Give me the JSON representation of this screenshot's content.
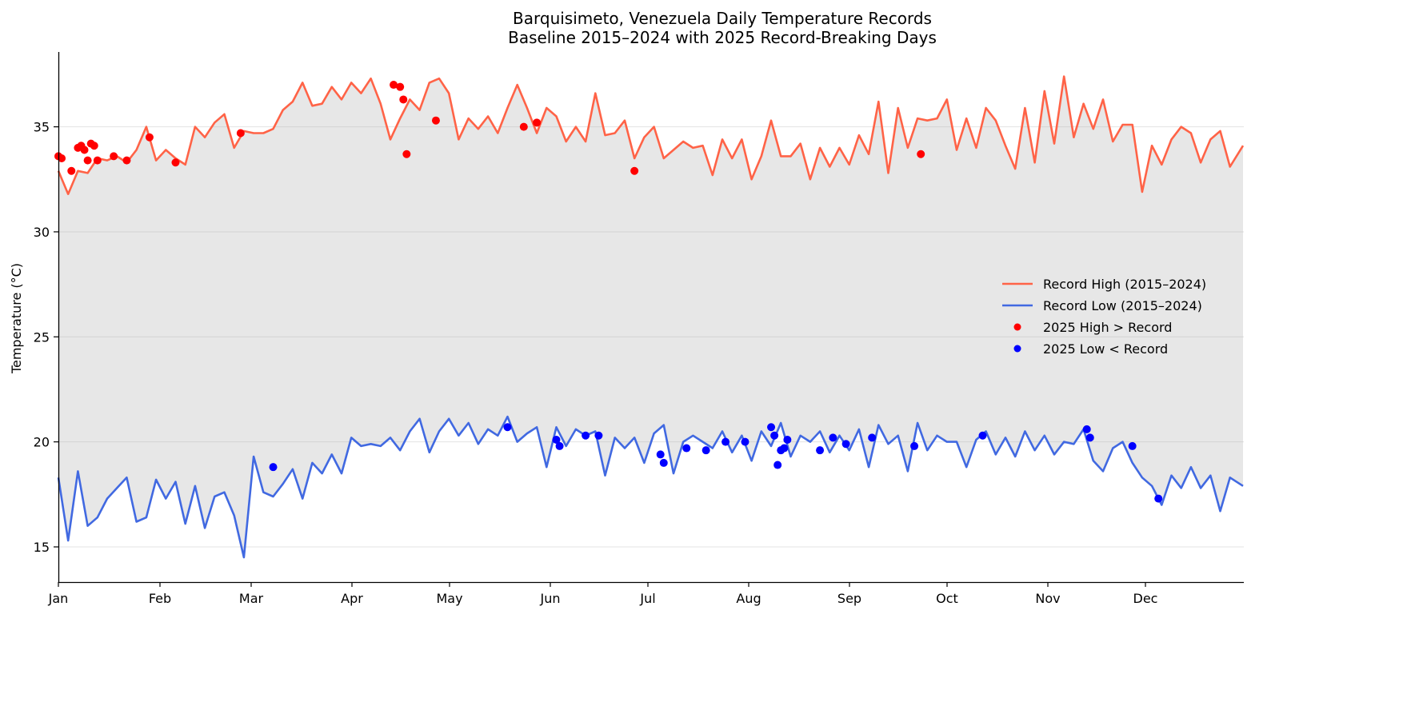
{
  "chart_data": {
    "type": "line",
    "title": "Barquisimeto, Venezuela Daily Temperature Records",
    "subtitle": "Baseline 2015–2024 with 2025 Record-Breaking Days",
    "xlabel": "",
    "ylabel": "Temperature (°C)",
    "ylim": [
      13.4,
      38.6
    ],
    "yticks": [
      15,
      20,
      25,
      30,
      35
    ],
    "xticks": [
      "Jan",
      "Feb",
      "Mar",
      "Apr",
      "May",
      "Jun",
      "Jul",
      "Aug",
      "Sep",
      "Oct",
      "Nov",
      "Dec"
    ],
    "grid": "horizontal",
    "fill_between": {
      "color": "#e7e7e7",
      "description": "shaded band between record low and record high"
    },
    "legend_position": "center right",
    "series": [
      {
        "name": "Record High (2015–2024)",
        "kind": "line",
        "color": "#ff6347",
        "day": [
          0,
          3,
          6,
          9,
          12,
          15,
          18,
          21,
          24,
          27,
          30,
          33,
          36,
          39,
          42,
          45,
          48,
          51,
          54,
          57,
          60,
          63,
          66,
          69,
          72,
          75,
          78,
          81,
          84,
          87,
          90,
          93,
          96,
          99,
          102,
          105,
          108,
          111,
          114,
          117,
          120,
          123,
          126,
          129,
          132,
          135,
          138,
          141,
          144,
          147,
          150,
          153,
          156,
          159,
          162,
          165,
          168,
          171,
          174,
          177,
          180,
          183,
          186,
          189,
          192,
          195,
          198,
          201,
          204,
          207,
          210,
          213,
          216,
          219,
          222,
          225,
          228,
          231,
          234,
          237,
          240,
          243,
          246,
          249,
          252,
          255,
          258,
          261,
          264,
          267,
          270,
          273,
          276,
          279,
          282,
          285,
          288,
          291,
          294,
          297,
          300,
          303,
          306,
          309,
          312,
          315,
          318,
          321,
          324,
          327,
          330,
          333,
          336,
          339,
          342,
          345,
          348,
          351,
          354,
          357,
          360,
          364
        ],
        "values": [
          32.9,
          31.8,
          32.9,
          32.8,
          33.5,
          33.4,
          33.6,
          33.3,
          33.9,
          35.0,
          33.4,
          33.9,
          33.5,
          33.2,
          35.0,
          34.5,
          35.2,
          35.6,
          34.0,
          34.8,
          34.7,
          34.7,
          34.9,
          35.8,
          36.2,
          37.1,
          36.0,
          36.1,
          36.9,
          36.3,
          37.1,
          36.6,
          37.3,
          36.1,
          34.4,
          35.4,
          36.3,
          35.8,
          37.1,
          37.3,
          36.6,
          34.4,
          35.4,
          34.9,
          35.5,
          34.7,
          35.9,
          37.0,
          35.9,
          34.7,
          35.9,
          35.5,
          34.3,
          35.0,
          34.3,
          36.6,
          34.6,
          34.7,
          35.3,
          33.5,
          34.5,
          35.0,
          33.5,
          33.9,
          34.3,
          34.0,
          34.1,
          32.7,
          34.4,
          33.5,
          34.4,
          32.5,
          33.6,
          35.3,
          33.6,
          33.6,
          34.2,
          32.5,
          34.0,
          33.1,
          34.0,
          33.2,
          34.6,
          33.7,
          36.2,
          32.8,
          35.9,
          34.0,
          35.4,
          35.3,
          35.4,
          36.3,
          33.9,
          35.4,
          34.0,
          35.9,
          35.3,
          34.1,
          33.0,
          35.9,
          33.3,
          36.7,
          34.2,
          37.4,
          34.5,
          36.1,
          34.9,
          36.3,
          34.3,
          35.1,
          35.1,
          31.9,
          34.1,
          33.2,
          34.4,
          35.0,
          34.7,
          33.3,
          34.4,
          34.8,
          33.1,
          34.1,
          33.2,
          34.0,
          33.3,
          34.2,
          33.8
        ]
      },
      {
        "name": "Record Low (2015–2024)",
        "kind": "line",
        "color": "#4169e1",
        "day": [
          0,
          3,
          6,
          9,
          12,
          15,
          18,
          21,
          24,
          27,
          30,
          33,
          36,
          39,
          42,
          45,
          48,
          51,
          54,
          57,
          60,
          63,
          66,
          69,
          72,
          75,
          78,
          81,
          84,
          87,
          90,
          93,
          96,
          99,
          102,
          105,
          108,
          111,
          114,
          117,
          120,
          123,
          126,
          129,
          132,
          135,
          138,
          141,
          144,
          147,
          150,
          153,
          156,
          159,
          162,
          165,
          168,
          171,
          174,
          177,
          180,
          183,
          186,
          189,
          192,
          195,
          198,
          201,
          204,
          207,
          210,
          213,
          216,
          219,
          222,
          225,
          228,
          231,
          234,
          237,
          240,
          243,
          246,
          249,
          252,
          255,
          258,
          261,
          264,
          267,
          270,
          273,
          276,
          279,
          282,
          285,
          288,
          291,
          294,
          297,
          300,
          303,
          306,
          309,
          312,
          315,
          318,
          321,
          324,
          327,
          330,
          333,
          336,
          339,
          342,
          345,
          348,
          351,
          354,
          357,
          360,
          364
        ],
        "values": [
          18.3,
          15.3,
          18.6,
          16.0,
          16.4,
          17.3,
          17.8,
          18.3,
          16.2,
          16.4,
          18.2,
          17.3,
          18.1,
          16.1,
          17.9,
          15.9,
          17.4,
          17.6,
          16.5,
          14.5,
          19.3,
          17.6,
          17.4,
          18.0,
          18.7,
          17.3,
          19.0,
          18.5,
          19.4,
          18.5,
          20.2,
          19.8,
          19.9,
          19.8,
          20.2,
          19.6,
          20.5,
          21.1,
          19.5,
          20.5,
          21.1,
          20.3,
          20.9,
          19.9,
          20.6,
          20.3,
          21.2,
          20.0,
          20.4,
          20.7,
          18.8,
          20.7,
          19.8,
          20.6,
          20.3,
          20.5,
          18.4,
          20.2,
          19.7,
          20.2,
          19.0,
          20.4,
          20.8,
          18.5,
          20.0,
          20.3,
          20.0,
          19.7,
          20.5,
          19.5,
          20.3,
          19.1,
          20.5,
          19.8,
          20.9,
          19.3,
          20.3,
          20.0,
          20.5,
          19.5,
          20.3,
          19.6,
          20.6,
          18.8,
          20.8,
          19.9,
          20.3,
          18.6,
          20.9,
          19.6,
          20.3,
          20.0,
          20.0,
          18.8,
          20.1,
          20.5,
          19.4,
          20.2,
          19.3,
          20.5,
          19.6,
          20.3,
          19.4,
          20.0,
          19.9,
          20.6,
          19.1,
          18.6,
          19.7,
          20.0,
          19.0,
          18.3,
          17.9,
          17.0,
          18.4,
          17.8,
          18.8,
          17.8,
          18.4,
          16.7,
          18.3,
          17.9
        ]
      },
      {
        "name": "2025 High > Record",
        "kind": "scatter",
        "color": "#ff0000",
        "points": [
          {
            "day": 0,
            "value": 33.6
          },
          {
            "day": 1,
            "value": 33.5
          },
          {
            "day": 4,
            "value": 32.9
          },
          {
            "day": 6,
            "value": 34.0
          },
          {
            "day": 7,
            "value": 34.1
          },
          {
            "day": 8,
            "value": 33.9
          },
          {
            "day": 9,
            "value": 33.4
          },
          {
            "day": 10,
            "value": 34.2
          },
          {
            "day": 11,
            "value": 34.1
          },
          {
            "day": 12,
            "value": 33.4
          },
          {
            "day": 17,
            "value": 33.6
          },
          {
            "day": 21,
            "value": 33.4
          },
          {
            "day": 28,
            "value": 34.5
          },
          {
            "day": 36,
            "value": 33.3
          },
          {
            "day": 56,
            "value": 34.7
          },
          {
            "day": 103,
            "value": 37.0
          },
          {
            "day": 105,
            "value": 36.9
          },
          {
            "day": 106,
            "value": 36.3
          },
          {
            "day": 107,
            "value": 33.7
          },
          {
            "day": 116,
            "value": 35.3
          },
          {
            "day": 143,
            "value": 35.0
          },
          {
            "day": 147,
            "value": 35.2
          },
          {
            "day": 177,
            "value": 32.9
          },
          {
            "day": 265,
            "value": 33.7
          }
        ]
      },
      {
        "name": "2025 Low < Record",
        "kind": "scatter",
        "color": "#0000ff",
        "points": [
          {
            "day": 66,
            "value": 18.8
          },
          {
            "day": 138,
            "value": 20.7
          },
          {
            "day": 153,
            "value": 20.1
          },
          {
            "day": 154,
            "value": 19.8
          },
          {
            "day": 162,
            "value": 20.3
          },
          {
            "day": 166,
            "value": 20.3
          },
          {
            "day": 185,
            "value": 19.4
          },
          {
            "day": 186,
            "value": 19.0
          },
          {
            "day": 193,
            "value": 19.7
          },
          {
            "day": 199,
            "value": 19.6
          },
          {
            "day": 205,
            "value": 20.0
          },
          {
            "day": 211,
            "value": 20.0
          },
          {
            "day": 219,
            "value": 20.7
          },
          {
            "day": 220,
            "value": 20.3
          },
          {
            "day": 221,
            "value": 18.9
          },
          {
            "day": 222,
            "value": 19.6
          },
          {
            "day": 223,
            "value": 19.7
          },
          {
            "day": 224,
            "value": 20.1
          },
          {
            "day": 234,
            "value": 19.6
          },
          {
            "day": 238,
            "value": 20.2
          },
          {
            "day": 242,
            "value": 19.9
          },
          {
            "day": 250,
            "value": 20.2
          },
          {
            "day": 263,
            "value": 19.8
          },
          {
            "day": 284,
            "value": 20.3
          },
          {
            "day": 316,
            "value": 20.6
          },
          {
            "day": 317,
            "value": 20.2
          },
          {
            "day": 330,
            "value": 19.8
          },
          {
            "day": 338,
            "value": 17.3
          }
        ]
      }
    ]
  },
  "legend": {
    "items": [
      {
        "label": "Record High (2015–2024)",
        "type": "line",
        "color": "#ff6347"
      },
      {
        "label": "Record Low (2015–2024)",
        "type": "line",
        "color": "#4169e1"
      },
      {
        "label": "2025 High > Record",
        "type": "marker",
        "color": "#ff0000"
      },
      {
        "label": "2025 Low < Record",
        "type": "marker",
        "color": "#0000ff"
      }
    ]
  }
}
